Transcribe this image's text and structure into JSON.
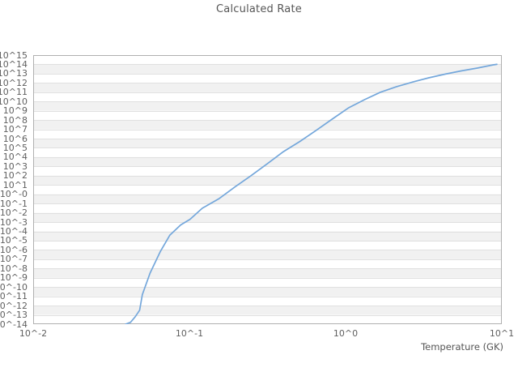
{
  "chart_data": {
    "type": "line",
    "title": "Calculated Rate",
    "xlabel": "Temperature (GK)",
    "ylabel": "",
    "x_scale": "log",
    "y_scale": "log",
    "xlim_log10": [
      -2,
      1
    ],
    "ylim_log10": [
      -14,
      15
    ],
    "x_tick_labels": [
      "10^-2",
      "10^-1",
      "10^0",
      "10^1"
    ],
    "x_tick_log10_values": [
      -2,
      -1,
      0,
      1
    ],
    "y_tick_labels": [
      "10^15",
      "10^14",
      "10^13",
      "10^12",
      "10^11",
      "10^10",
      "10^9",
      "10^8",
      "10^7",
      "10^6",
      "10^5",
      "10^4",
      "10^3",
      "10^2",
      "10^1",
      "10^-0",
      "10^-1",
      "10^-2",
      "10^-3",
      "10^-4",
      "10^-5",
      "10^-6",
      "10^-7",
      "10^-8",
      "10^-9",
      "10^-10",
      "10^-11",
      "10^-12",
      "10^-13",
      "10^-14"
    ],
    "y_tick_log10_values": [
      15,
      14,
      13,
      12,
      11,
      10,
      9,
      8,
      7,
      6,
      5,
      4,
      3,
      2,
      1,
      0,
      -1,
      -2,
      -3,
      -4,
      -5,
      -6,
      -7,
      -8,
      -9,
      -10,
      -11,
      -12,
      -13,
      -14
    ],
    "grid": "horizontal-decade-bands",
    "legend": "none",
    "series": [
      {
        "name": "calculated-rate",
        "color": "#74a7db",
        "x_GK": [
          0.039,
          0.042,
          0.045,
          0.048,
          0.05,
          0.056,
          0.065,
          0.075,
          0.088,
          0.101,
          0.121,
          0.154,
          0.196,
          0.248,
          0.316,
          0.4,
          0.51,
          0.65,
          0.82,
          1.04,
          1.32,
          1.67,
          2.12,
          2.69,
          3.41,
          4.33,
          5.49,
          6.96,
          8.83,
          9.3
        ],
        "log10_rate": [
          -14.0,
          -13.8,
          -13.2,
          -12.5,
          -10.8,
          -8.5,
          -6.2,
          -4.4,
          -3.3,
          -2.7,
          -1.5,
          -0.5,
          0.8,
          2.0,
          3.3,
          4.6,
          5.7,
          6.9,
          8.1,
          9.3,
          10.2,
          11.0,
          11.6,
          12.1,
          12.55,
          12.95,
          13.3,
          13.6,
          13.95,
          14.0
        ]
      }
    ],
    "colors": {
      "line": "#74a7db",
      "band_gray": "#f1f1f1",
      "band_white": "#ffffff",
      "gridline": "#e0e0e0",
      "frame_border": "#b0b0b0",
      "tick_text": "#606060",
      "title_text": "#555555",
      "background": "#ffffff"
    }
  }
}
